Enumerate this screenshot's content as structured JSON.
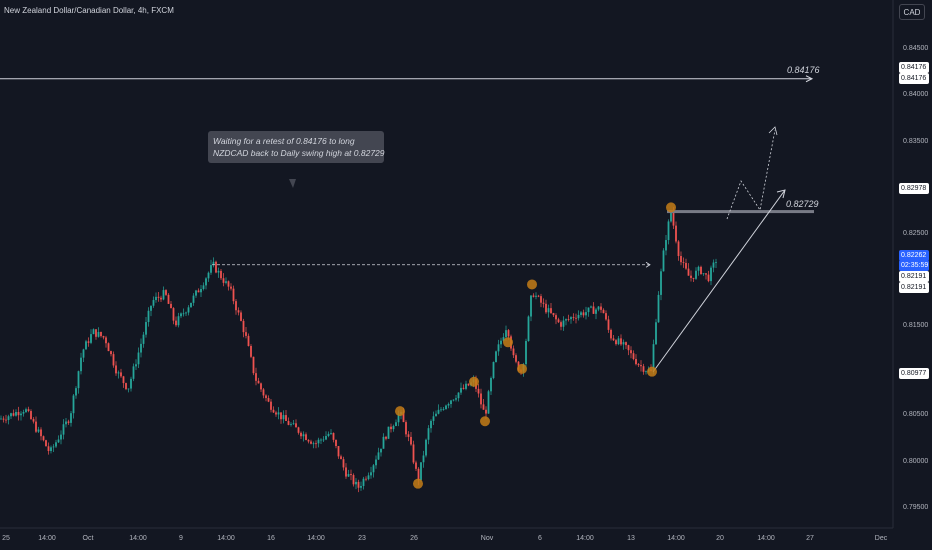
{
  "header": {
    "symbol_title": "New Zealand Dollar/Canadian Dollar, 4h, FXCM",
    "currency_button": "CAD"
  },
  "colors": {
    "background": "#131722",
    "bull": "#26a69a",
    "bear": "#ef5350",
    "marker": "#c47d16",
    "line": "#d1d4dc"
  },
  "annotation": {
    "line1": "Waiting for a retest of 0.84176 to long",
    "line2": "NZDCAD back to Daily swing high at 0.82729"
  },
  "levels": {
    "upper_label": "0.84176",
    "resistance_label": "0.82729"
  },
  "price_tags": {
    "upper_a": "0.84176",
    "upper_b": "0.84176",
    "level_1": "0.82978",
    "current_price": "0.82262",
    "countdown": "02:35:59",
    "level_2": "0.82191",
    "level_3": "0.82191",
    "level_4": "0.80977"
  },
  "chart_data": {
    "type": "candlestick",
    "timeframe": "4h",
    "symbol": "NZDCAD",
    "y_ticks": [
      "0.84500",
      "0.84000",
      "0.83500",
      "0.83000",
      "0.82500",
      "0.82000",
      "0.81500",
      "0.81000",
      "0.80500",
      "0.80000",
      "0.79500"
    ],
    "x_ticks": [
      "25",
      "14:00",
      "Oct",
      "14:00",
      "9",
      "14:00",
      "16",
      "14:00",
      "23",
      "26",
      "Nov",
      "6",
      "14:00",
      "13",
      "14:00",
      "20",
      "14:00",
      "27",
      "Dec"
    ],
    "ylim": [
      0.794,
      0.8465
    ],
    "price_path": [
      [
        0,
        0.8047
      ],
      [
        25,
        0.8058
      ],
      [
        50,
        0.801
      ],
      [
        70,
        0.805
      ],
      [
        82,
        0.812
      ],
      [
        93,
        0.8142
      ],
      [
        105,
        0.8135
      ],
      [
        117,
        0.8098
      ],
      [
        128,
        0.808
      ],
      [
        140,
        0.8125
      ],
      [
        152,
        0.8175
      ],
      [
        165,
        0.8184
      ],
      [
        175,
        0.815
      ],
      [
        185,
        0.8165
      ],
      [
        200,
        0.819
      ],
      [
        213,
        0.8215
      ],
      [
        230,
        0.8188
      ],
      [
        245,
        0.814
      ],
      [
        255,
        0.8092
      ],
      [
        268,
        0.8065
      ],
      [
        285,
        0.8045
      ],
      [
        300,
        0.8033
      ],
      [
        315,
        0.802
      ],
      [
        330,
        0.8032
      ],
      [
        345,
        0.799
      ],
      [
        358,
        0.7972
      ],
      [
        372,
        0.7995
      ],
      [
        385,
        0.8028
      ],
      [
        400,
        0.8054
      ],
      [
        410,
        0.802
      ],
      [
        418,
        0.798
      ],
      [
        430,
        0.8043
      ],
      [
        445,
        0.8063
      ],
      [
        460,
        0.8077
      ],
      [
        474,
        0.8088
      ],
      [
        485,
        0.805
      ],
      [
        495,
        0.8115
      ],
      [
        507,
        0.815
      ],
      [
        514,
        0.811
      ],
      [
        522,
        0.8098
      ],
      [
        532,
        0.8186
      ],
      [
        545,
        0.8168
      ],
      [
        560,
        0.815
      ],
      [
        575,
        0.816
      ],
      [
        590,
        0.8165
      ],
      [
        602,
        0.8168
      ],
      [
        610,
        0.8138
      ],
      [
        625,
        0.8125
      ],
      [
        640,
        0.8105
      ],
      [
        651,
        0.8098
      ],
      [
        658,
        0.818
      ],
      [
        665,
        0.824
      ],
      [
        671,
        0.8273
      ],
      [
        680,
        0.822
      ],
      [
        690,
        0.82
      ],
      [
        700,
        0.821
      ],
      [
        708,
        0.82
      ],
      [
        718,
        0.8225
      ]
    ],
    "markers": [
      {
        "x": 400,
        "price": 0.80555
      },
      {
        "x": 418,
        "price": 0.79765
      },
      {
        "x": 474,
        "price": 0.80875
      },
      {
        "x": 485,
        "price": 0.80445
      },
      {
        "x": 508,
        "price": 0.81305
      },
      {
        "x": 522,
        "price": 0.81015
      },
      {
        "x": 532,
        "price": 0.81935
      },
      {
        "x": 652,
        "price": 0.80985
      },
      {
        "x": 671,
        "price": 0.82775
      }
    ],
    "lines": {
      "upper_level": 0.84176,
      "resistance_zone": 0.82729,
      "dashed_high": 0.8215
    }
  }
}
